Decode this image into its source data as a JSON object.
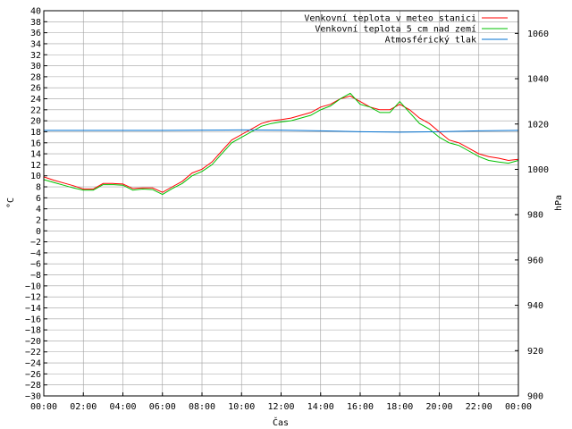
{
  "chart_data": {
    "type": "line",
    "title": "",
    "xlabel": "Čas",
    "ylabel": "°C",
    "y2label": "hPa",
    "grid": true,
    "legend_position": "top-right",
    "x_ticks": [
      "00:00",
      "02:00",
      "04:00",
      "06:00",
      "08:00",
      "10:00",
      "12:00",
      "14:00",
      "16:00",
      "18:00",
      "20:00",
      "22:00",
      "00:00"
    ],
    "xlim_hours": [
      0,
      24
    ],
    "ylim": [
      -30,
      40
    ],
    "y_ticks": [
      40,
      38,
      36,
      34,
      32,
      30,
      28,
      26,
      24,
      22,
      20,
      18,
      16,
      14,
      12,
      10,
      8,
      6,
      4,
      2,
      0,
      -2,
      -4,
      -6,
      -8,
      -10,
      -12,
      -14,
      -16,
      -18,
      -20,
      -22,
      -24,
      -26,
      -28,
      -30
    ],
    "y2lim": [
      900,
      1070
    ],
    "y2_ticks": [
      1060,
      1040,
      1020,
      1000,
      980,
      960,
      940,
      920,
      900
    ],
    "series": [
      {
        "name": "Venkovní teplota v meteo stanici",
        "color": "#ff0000",
        "axis": "y",
        "x": [
          0,
          0.5,
          1,
          1.5,
          2,
          2.5,
          3,
          3.5,
          4,
          4.5,
          5,
          5.5,
          6,
          6.5,
          7,
          7.5,
          8,
          8.5,
          9,
          9.5,
          10,
          10.5,
          11,
          11.5,
          12,
          12.5,
          13,
          13.5,
          14,
          14.5,
          15,
          15.5,
          16,
          16.5,
          17,
          17.5,
          18,
          18.5,
          19,
          19.5,
          20,
          20.5,
          21,
          21.5,
          22,
          22.5,
          23,
          23.5,
          24
        ],
        "values": [
          9.8,
          9.2,
          8.7,
          8.2,
          7.6,
          7.6,
          8.6,
          8.6,
          8.5,
          7.7,
          7.8,
          7.8,
          7.0,
          8.0,
          9.0,
          10.5,
          11.2,
          12.5,
          14.5,
          16.5,
          17.5,
          18.5,
          19.5,
          20.0,
          20.2,
          20.5,
          21.0,
          21.5,
          22.5,
          23.0,
          24.0,
          24.5,
          23.5,
          22.5,
          22.0,
          22.0,
          23.0,
          22.0,
          20.5,
          19.5,
          18.0,
          16.5,
          16.0,
          15.0,
          14.0,
          13.5,
          13.2,
          12.8,
          13.0
        ]
      },
      {
        "name": "Venkovní teplota 5 cm nad zemí",
        "color": "#00c000",
        "axis": "y",
        "x": [
          0,
          0.5,
          1,
          1.5,
          2,
          2.5,
          3,
          3.5,
          4,
          4.5,
          5,
          5.5,
          6,
          6.5,
          7,
          7.5,
          8,
          8.5,
          9,
          9.5,
          10,
          10.5,
          11,
          11.5,
          12,
          12.5,
          13,
          13.5,
          14,
          14.5,
          15,
          15.5,
          16,
          16.5,
          17,
          17.5,
          18,
          18.5,
          19,
          19.5,
          20,
          20.5,
          21,
          21.5,
          22,
          22.5,
          23,
          23.5,
          24
        ],
        "values": [
          9.3,
          8.8,
          8.3,
          7.8,
          7.4,
          7.4,
          8.4,
          8.4,
          8.3,
          7.4,
          7.6,
          7.5,
          6.6,
          7.7,
          8.6,
          10.0,
          10.8,
          12.0,
          14.0,
          16.0,
          17.0,
          18.0,
          19.0,
          19.5,
          19.8,
          20.0,
          20.5,
          21.0,
          22.0,
          22.7,
          24.0,
          25.0,
          23.0,
          22.5,
          21.5,
          21.5,
          23.5,
          21.5,
          19.5,
          18.5,
          17.0,
          16.0,
          15.5,
          14.5,
          13.5,
          12.8,
          12.5,
          12.3,
          12.8
        ]
      },
      {
        "name": "Atmosférický tlak",
        "color": "#0070d0",
        "axis": "y2",
        "x": [
          0,
          2,
          4,
          6,
          8,
          10,
          12,
          14,
          16,
          18,
          20,
          22,
          24
        ],
        "values": [
          1017.2,
          1017.2,
          1017.2,
          1017.2,
          1017.3,
          1017.4,
          1017.3,
          1017.0,
          1016.6,
          1016.4,
          1016.6,
          1017.0,
          1017.2
        ]
      }
    ]
  }
}
